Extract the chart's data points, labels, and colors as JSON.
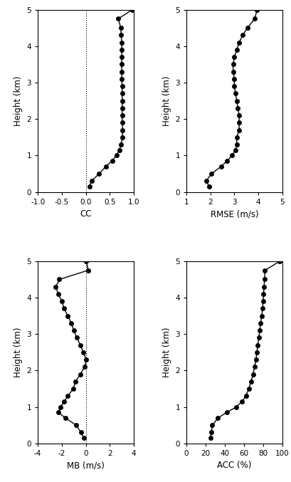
{
  "height": [
    0.15,
    0.3,
    0.5,
    0.7,
    0.85,
    1.0,
    1.15,
    1.3,
    1.5,
    1.7,
    1.9,
    2.1,
    2.3,
    2.5,
    2.7,
    2.9,
    3.1,
    3.3,
    3.5,
    3.7,
    3.9,
    4.1,
    4.3,
    4.5,
    4.75,
    5.0
  ],
  "cc": [
    0.08,
    0.12,
    0.28,
    0.42,
    0.55,
    0.64,
    0.7,
    0.74,
    0.76,
    0.77,
    0.76,
    0.76,
    0.76,
    0.76,
    0.76,
    0.76,
    0.75,
    0.75,
    0.75,
    0.75,
    0.75,
    0.75,
    0.74,
    0.73,
    0.68,
    0.97
  ],
  "rmse": [
    1.95,
    1.82,
    2.05,
    2.45,
    2.7,
    2.9,
    3.05,
    3.1,
    3.1,
    3.2,
    3.2,
    3.2,
    3.15,
    3.1,
    3.05,
    3.0,
    3.0,
    2.95,
    2.95,
    3.0,
    3.1,
    3.2,
    3.35,
    3.55,
    3.85,
    3.95
  ],
  "mb": [
    -0.15,
    -0.4,
    -0.8,
    -1.7,
    -2.3,
    -2.1,
    -1.8,
    -1.5,
    -1.05,
    -0.85,
    -0.45,
    -0.1,
    0.05,
    -0.2,
    -0.45,
    -0.75,
    -1.0,
    -1.2,
    -1.5,
    -1.8,
    -2.0,
    -2.3,
    -2.5,
    -2.2,
    0.2,
    0.05
  ],
  "acc": [
    25.0,
    26.0,
    27.0,
    33.0,
    42.0,
    52.0,
    58.0,
    62.0,
    65.0,
    67.5,
    69.5,
    71.0,
    72.5,
    73.5,
    74.5,
    75.5,
    76.5,
    77.5,
    78.5,
    79.5,
    80.0,
    80.5,
    81.0,
    81.5,
    82.0,
    97.5
  ],
  "cc_xlim": [
    -1.0,
    1.0
  ],
  "cc_xticks": [
    -1.0,
    -0.5,
    0.0,
    0.5,
    1.0
  ],
  "cc_xticklabels": [
    "-1.0",
    "-0.5",
    "0.0",
    "0.5",
    "1.0"
  ],
  "cc_xlabel": "CC",
  "rmse_xlim": [
    1,
    5
  ],
  "rmse_xticks": [
    1,
    2,
    3,
    4,
    5
  ],
  "rmse_xticklabels": [
    "1",
    "2",
    "3",
    "4",
    "5"
  ],
  "rmse_xlabel": "RMSE (m/s)",
  "mb_xlim": [
    -4,
    4
  ],
  "mb_xticks": [
    -4,
    -2,
    0,
    2,
    4
  ],
  "mb_xticklabels": [
    "-4",
    "-2",
    "0",
    "2",
    "4"
  ],
  "mb_xlabel": "MB (m/s)",
  "acc_xlim": [
    0,
    100
  ],
  "acc_xticks": [
    0,
    20,
    40,
    60,
    80,
    100
  ],
  "acc_xticklabels": [
    "0",
    "20",
    "40",
    "60",
    "80",
    "100"
  ],
  "acc_xlabel": "ACC (%)",
  "ylim": [
    0,
    5
  ],
  "yticks": [
    0,
    1,
    2,
    3,
    4,
    5
  ],
  "ylabel": "Height (km)",
  "line_color": "#000000",
  "marker": "o",
  "markersize": 4.5,
  "linewidth": 1.0,
  "markerfacecolor": "#000000",
  "bg_color": "#ffffff",
  "tick_fontsize": 7.5,
  "label_fontsize": 8.5
}
